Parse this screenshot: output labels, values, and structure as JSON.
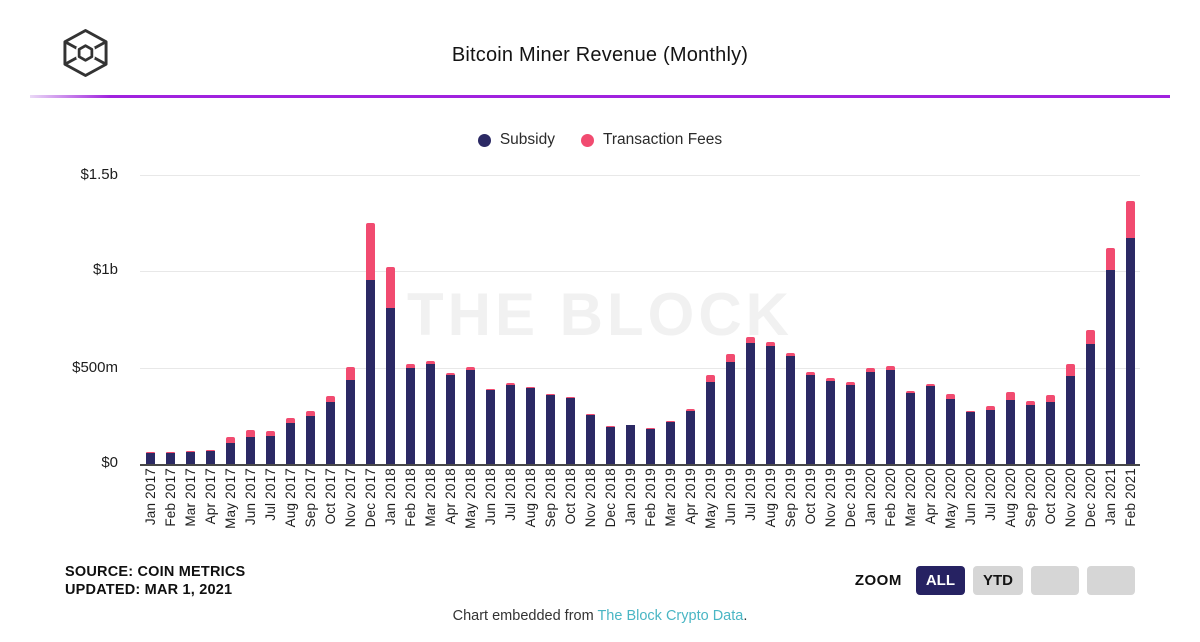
{
  "header": {
    "title": "Bitcoin Miner Revenue (Monthly)",
    "logo": "the-block-cube-logo"
  },
  "legend": {
    "items": [
      {
        "label": "Subsidy",
        "color": "#2b2964"
      },
      {
        "label": "Transaction Fees",
        "color": "#f14b70"
      }
    ]
  },
  "watermark": "THE BLOCK",
  "chart_data": {
    "type": "bar",
    "stacked": true,
    "title": "Bitcoin Miner Revenue (Monthly)",
    "values_unit": "USD millions",
    "ylim": [
      0,
      1500
    ],
    "y_tick_labels": [
      "$1.5b",
      "$1b",
      "$500m",
      "$0"
    ],
    "grid": true,
    "legend_position": "top",
    "categories": [
      "Jan 2017",
      "Feb 2017",
      "Mar 2017",
      "Apr 2017",
      "May 2017",
      "Jun 2017",
      "Jul 2017",
      "Aug 2017",
      "Sep 2017",
      "Oct 2017",
      "Nov 2017",
      "Dec 2017",
      "Jan 2018",
      "Feb 2018",
      "Mar 2018",
      "Apr 2018",
      "May 2018",
      "Jun 2018",
      "Jul 2018",
      "Aug 2018",
      "Sep 2018",
      "Oct 2018",
      "Nov 2018",
      "Dec 2018",
      "Jan 2019",
      "Feb 2019",
      "Mar 2019",
      "Apr 2019",
      "May 2019",
      "Jun 2019",
      "Jul 2019",
      "Aug 2019",
      "Sep 2019",
      "Oct 2019",
      "Nov 2019",
      "Dec 2019",
      "Jan 2020",
      "Feb 2020",
      "Mar 2020",
      "Apr 2020",
      "May 2020",
      "Jun 2020",
      "Jul 2020",
      "Aug 2020",
      "Sep 2020",
      "Oct 2020",
      "Nov 2020",
      "Dec 2020",
      "Jan 2021",
      "Feb 2021"
    ],
    "series": [
      {
        "name": "Subsidy",
        "color": "#2b2964",
        "values": [
          57,
          57,
          64,
          68,
          110,
          140,
          146,
          215,
          250,
          320,
          435,
          953,
          808,
          500,
          518,
          460,
          488,
          383,
          411,
          393,
          360,
          343,
          253,
          193,
          200,
          180,
          217,
          273,
          426,
          530,
          630,
          613,
          561,
          461,
          430,
          411,
          478,
          487,
          370,
          403,
          340,
          268,
          280,
          332,
          306,
          321,
          457,
          621,
          1005,
          1172
        ]
      },
      {
        "name": "Transaction Fees",
        "color": "#f14b70",
        "values": [
          4,
          4,
          5,
          6,
          28,
          36,
          27,
          22,
          25,
          32,
          68,
          300,
          212,
          21,
          15,
          10,
          13,
          8,
          7,
          7,
          6,
          6,
          6,
          5,
          5,
          5,
          6,
          12,
          36,
          43,
          29,
          20,
          15,
          15,
          14,
          14,
          21,
          21,
          10,
          10,
          26,
          8,
          20,
          43,
          22,
          35,
          64,
          73,
          117,
          192
        ]
      }
    ]
  },
  "footer": {
    "source_line1": "SOURCE: COIN METRICS",
    "source_line2": "UPDATED: MAR 1, 2021",
    "zoom_label": "ZOOM",
    "zoom_buttons": [
      {
        "label": "ALL",
        "active": true
      },
      {
        "label": "YTD",
        "active": false
      },
      {
        "label": "",
        "active": false
      },
      {
        "label": "",
        "active": false
      }
    ],
    "embed_prefix": "Chart embedded from",
    "embed_link_text": "The Block Crypto Data",
    "embed_suffix": "."
  },
  "colors": {
    "subsidy_navy": "#2b2964",
    "fees_pink": "#f14b70",
    "header_rule_purple": "#a022de",
    "active_button_navy": "#262262",
    "inactive_button_gray": "#d6d6d6",
    "embed_link_teal": "#4ab6c4",
    "watermark_gray": "#f1f1f1",
    "gridline_gray": "#e8e8e8"
  }
}
